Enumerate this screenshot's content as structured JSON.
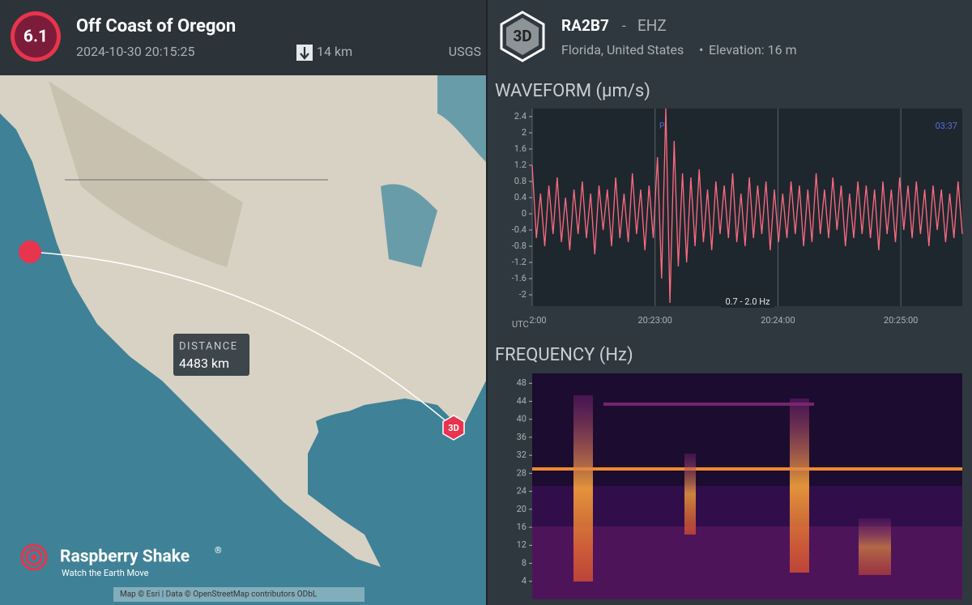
{
  "event": {
    "magnitude": "6.1",
    "title": "Off Coast of Oregon",
    "datetime": "2024-10-30 20:15:25",
    "depth": "14 km",
    "source": "USGS"
  },
  "map": {
    "distance_label": "DISTANCE",
    "distance": "4483 km",
    "station_badge": "3D",
    "brand": "Raspberry Shake",
    "brand_mark": "®",
    "tagline": "Watch the Earth Move",
    "attribution": "Map © Esri | Data © OpenStreetMap contributors ODbL"
  },
  "station": {
    "badge": "3D",
    "code": "RA2B7",
    "separator": "-",
    "channel": "EHZ",
    "location": "Florida, United States",
    "bullet": "•",
    "elevation": "Elevation: 16 m"
  },
  "waveform": {
    "title": "WAVEFORM (µm/s)",
    "color": "#ff6b81",
    "time_label": "UTC",
    "filter": "0.7 - 2.0 Hz",
    "phase": "P",
    "clock": "03:37",
    "ylim": [
      -2.28,
      2.6
    ],
    "yticks": [
      2.4,
      2,
      1.6,
      1.2,
      0.8,
      0.4,
      0,
      -0.4,
      -0.8,
      -1.2,
      -1.6,
      -2
    ],
    "xlim": [
      22,
      25.5
    ],
    "xticks": [
      {
        "value": 22,
        "label": "2:00"
      },
      {
        "value": 23,
        "label": "20:23:00"
      },
      {
        "value": 24,
        "label": "20:24:00"
      },
      {
        "value": 25,
        "label": "20:25:00"
      }
    ],
    "values": [
      1.2,
      -0.6,
      0.5,
      -0.8,
      0.7,
      -0.5,
      0.9,
      -0.7,
      0.4,
      -0.9,
      0.6,
      -0.5,
      0.8,
      -0.6,
      0.5,
      -1.0,
      0.7,
      -0.4,
      0.6,
      -0.8,
      0.9,
      -0.6,
      0.5,
      -0.7,
      1.0,
      -0.5,
      0.6,
      -0.9,
      0.7,
      -0.6,
      1.4,
      -1.6,
      2.6,
      -2.2,
      1.8,
      -1.3,
      1.0,
      -1.2,
      0.9,
      -0.8,
      1.1,
      -0.7,
      0.6,
      -0.9,
      0.8,
      -0.5,
      0.7,
      -0.6,
      1.0,
      -0.7,
      0.5,
      -0.8,
      0.9,
      -0.6,
      0.7,
      -0.5,
      0.8,
      -0.9,
      0.6,
      -0.7,
      0.5,
      -0.6,
      0.8,
      -0.5,
      0.7,
      -0.8,
      0.6,
      -0.7,
      1.0,
      -0.5,
      0.6,
      -0.6,
      0.9,
      -0.4,
      0.7,
      -0.8,
      0.5,
      -0.6,
      0.8,
      -0.5,
      0.7,
      -0.6,
      0.6,
      -0.9,
      0.8,
      -0.5,
      0.6,
      -0.7,
      0.9,
      -0.4,
      0.7,
      -0.6,
      0.8,
      -0.5,
      0.6,
      -0.8,
      0.7,
      -0.4,
      0.6,
      -0.7,
      0.5,
      -0.6,
      0.8,
      -0.5
    ]
  },
  "frequency": {
    "title": "FREQUENCY (Hz)",
    "ylim": [
      0,
      50.2
    ],
    "yticks": [
      48,
      44,
      40,
      36,
      32,
      28,
      24,
      20,
      16,
      12,
      8,
      4
    ]
  }
}
